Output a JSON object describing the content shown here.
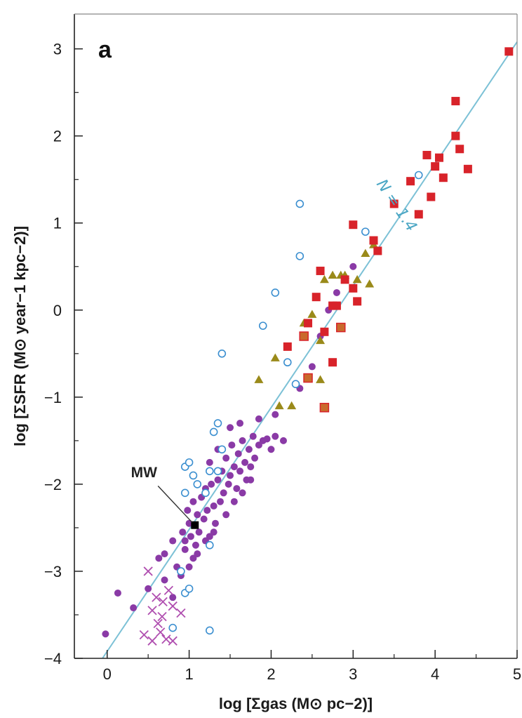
{
  "chart_data": {
    "type": "scatter",
    "panel_label": "a",
    "xlabel": "log [Σgas (M⊙ pc−2)]",
    "ylabel": "log [ΣSFR (M⊙ year−1 kpc−2)]",
    "xlim": [
      -0.4,
      5.0
    ],
    "ylim": [
      -4.0,
      3.4
    ],
    "xticks": [
      0,
      1,
      2,
      3,
      4,
      5
    ],
    "yticks": [
      -4,
      -3,
      -2,
      -1,
      0,
      1,
      2,
      3
    ],
    "xtick_labels": [
      "0",
      "1",
      "2",
      "3",
      "4",
      "5"
    ],
    "ytick_labels": [
      "−4",
      "−3",
      "−2",
      "−1",
      "0",
      "1",
      "2",
      "3"
    ],
    "grid": false,
    "fit_line": {
      "label": "N = 1.4",
      "slope": 1.4,
      "intercept": -3.92,
      "color": "#7cc1d6"
    },
    "annotation": {
      "text": "MW",
      "x": 1.07,
      "y": -2.47
    },
    "colors": {
      "purple": "#8a3aa6",
      "open_circle": "#3b8fd0",
      "cross": "#b04fb0",
      "triangle": "#9a8a1a",
      "square": "#d8232a",
      "square_orange": "#c96a2c",
      "mw": "#000000"
    },
    "series": [
      {
        "marker": "filled-circle",
        "points": [
          [
            -0.02,
            -3.72
          ],
          [
            0.13,
            -3.25
          ],
          [
            0.32,
            -3.42
          ],
          [
            0.5,
            -3.2
          ],
          [
            0.63,
            -2.85
          ],
          [
            0.7,
            -2.8
          ],
          [
            0.8,
            -2.65
          ],
          [
            0.85,
            -2.95
          ],
          [
            0.92,
            -2.55
          ],
          [
            0.95,
            -2.75
          ],
          [
            0.98,
            -2.3
          ],
          [
            1.0,
            -2.45
          ],
          [
            1.02,
            -2.6
          ],
          [
            1.05,
            -2.2
          ],
          [
            1.08,
            -2.7
          ],
          [
            1.1,
            -2.35
          ],
          [
            1.12,
            -2.55
          ],
          [
            1.15,
            -2.15
          ],
          [
            1.18,
            -2.4
          ],
          [
            1.2,
            -2.05
          ],
          [
            1.22,
            -2.3
          ],
          [
            1.25,
            -2.6
          ],
          [
            1.27,
            -2.0
          ],
          [
            1.3,
            -2.25
          ],
          [
            1.32,
            -2.45
          ],
          [
            1.35,
            -1.95
          ],
          [
            1.38,
            -2.2
          ],
          [
            1.4,
            -1.85
          ],
          [
            1.42,
            -2.1
          ],
          [
            1.45,
            -1.7
          ],
          [
            1.48,
            -2.0
          ],
          [
            1.5,
            -1.9
          ],
          [
            1.52,
            -1.55
          ],
          [
            1.55,
            -1.8
          ],
          [
            1.58,
            -2.05
          ],
          [
            1.6,
            -1.65
          ],
          [
            1.62,
            -1.85
          ],
          [
            1.65,
            -1.5
          ],
          [
            1.68,
            -1.75
          ],
          [
            1.7,
            -1.95
          ],
          [
            1.73,
            -1.6
          ],
          [
            1.75,
            -1.8
          ],
          [
            1.78,
            -1.45
          ],
          [
            1.8,
            -1.7
          ],
          [
            1.85,
            -1.55
          ],
          [
            1.9,
            -1.5
          ],
          [
            1.95,
            -1.48
          ],
          [
            2.0,
            -1.6
          ],
          [
            2.05,
            -1.45
          ],
          [
            2.15,
            -1.5
          ],
          [
            1.1,
            -2.8
          ],
          [
            1.0,
            -2.95
          ],
          [
            0.9,
            -3.05
          ],
          [
            0.8,
            -3.3
          ],
          [
            0.7,
            -3.1
          ],
          [
            1.3,
            -2.55
          ],
          [
            1.45,
            -2.35
          ],
          [
            1.55,
            -2.2
          ],
          [
            1.65,
            -2.1
          ],
          [
            1.75,
            -1.95
          ],
          [
            1.2,
            -2.65
          ],
          [
            0.95,
            -2.65
          ],
          [
            1.05,
            -2.85
          ],
          [
            1.35,
            -1.6
          ],
          [
            1.25,
            -1.75
          ],
          [
            1.5,
            -1.35
          ],
          [
            1.62,
            -1.3
          ],
          [
            1.85,
            -1.25
          ],
          [
            2.05,
            -1.2
          ],
          [
            2.35,
            -0.9
          ],
          [
            2.5,
            -0.65
          ],
          [
            2.6,
            -0.3
          ],
          [
            2.7,
            0.0
          ],
          [
            2.8,
            0.2
          ],
          [
            3.0,
            0.5
          ]
        ]
      },
      {
        "marker": "open-circle",
        "points": [
          [
            0.95,
            -1.8
          ],
          [
            1.0,
            -1.75
          ],
          [
            1.05,
            -1.9
          ],
          [
            0.95,
            -2.1
          ],
          [
            1.25,
            -1.85
          ],
          [
            1.35,
            -1.85
          ],
          [
            1.3,
            -1.4
          ],
          [
            1.35,
            -1.3
          ],
          [
            0.9,
            -3.0
          ],
          [
            0.95,
            -3.25
          ],
          [
            1.0,
            -3.2
          ],
          [
            0.8,
            -3.65
          ],
          [
            1.25,
            -2.7
          ],
          [
            1.25,
            -3.68
          ],
          [
            1.4,
            -0.5
          ],
          [
            1.9,
            -0.18
          ],
          [
            2.05,
            0.2
          ],
          [
            2.2,
            -0.6
          ],
          [
            2.3,
            -0.85
          ],
          [
            2.35,
            1.22
          ],
          [
            2.35,
            0.62
          ],
          [
            3.15,
            0.9
          ],
          [
            3.8,
            1.55
          ],
          [
            1.2,
            -2.1
          ],
          [
            1.4,
            -1.6
          ],
          [
            1.1,
            -2.0
          ]
        ]
      },
      {
        "marker": "cross",
        "points": [
          [
            0.45,
            -3.73
          ],
          [
            0.55,
            -3.8
          ],
          [
            0.65,
            -3.7
          ],
          [
            0.72,
            -3.78
          ],
          [
            0.62,
            -3.6
          ],
          [
            0.55,
            -3.45
          ],
          [
            0.68,
            -3.35
          ],
          [
            0.8,
            -3.4
          ],
          [
            0.6,
            -3.3
          ],
          [
            0.75,
            -3.22
          ],
          [
            0.9,
            -3.48
          ],
          [
            0.5,
            -3.0
          ],
          [
            0.8,
            -3.8
          ],
          [
            0.67,
            -3.52
          ]
        ]
      },
      {
        "marker": "triangle",
        "points": [
          [
            1.85,
            -0.8
          ],
          [
            2.05,
            -0.55
          ],
          [
            2.1,
            -1.1
          ],
          [
            2.25,
            -1.1
          ],
          [
            2.4,
            -0.15
          ],
          [
            2.5,
            -0.05
          ],
          [
            2.6,
            -0.35
          ],
          [
            2.65,
            0.35
          ],
          [
            2.75,
            0.4
          ],
          [
            2.85,
            0.4
          ],
          [
            2.9,
            0.4
          ],
          [
            3.05,
            0.35
          ],
          [
            3.15,
            0.65
          ],
          [
            3.2,
            0.3
          ],
          [
            2.6,
            -0.8
          ],
          [
            3.25,
            0.75
          ]
        ]
      },
      {
        "marker": "square",
        "points": [
          [
            2.2,
            -0.42
          ],
          [
            2.45,
            -0.15
          ],
          [
            2.55,
            0.15
          ],
          [
            2.6,
            0.45
          ],
          [
            2.65,
            -0.25
          ],
          [
            2.75,
            -0.6
          ],
          [
            2.8,
            0.05
          ],
          [
            2.9,
            0.35
          ],
          [
            3.0,
            0.25
          ],
          [
            3.05,
            0.1
          ],
          [
            3.0,
            0.98
          ],
          [
            3.25,
            0.8
          ],
          [
            3.3,
            0.68
          ],
          [
            3.5,
            1.22
          ],
          [
            3.7,
            1.48
          ],
          [
            3.8,
            1.1
          ],
          [
            3.9,
            1.78
          ],
          [
            3.95,
            1.3
          ],
          [
            4.0,
            1.65
          ],
          [
            4.05,
            1.75
          ],
          [
            4.1,
            1.52
          ],
          [
            4.25,
            2.4
          ],
          [
            4.25,
            2.0
          ],
          [
            4.3,
            1.85
          ],
          [
            4.4,
            1.62
          ],
          [
            4.9,
            2.97
          ],
          [
            2.75,
            0.05
          ]
        ]
      },
      {
        "marker": "square-orange",
        "points": [
          [
            2.4,
            -0.3
          ],
          [
            2.45,
            -0.78
          ],
          [
            2.65,
            -1.12
          ],
          [
            2.85,
            -0.2
          ]
        ]
      },
      {
        "marker": "mw-square",
        "points": [
          [
            1.07,
            -2.47
          ]
        ]
      }
    ]
  }
}
